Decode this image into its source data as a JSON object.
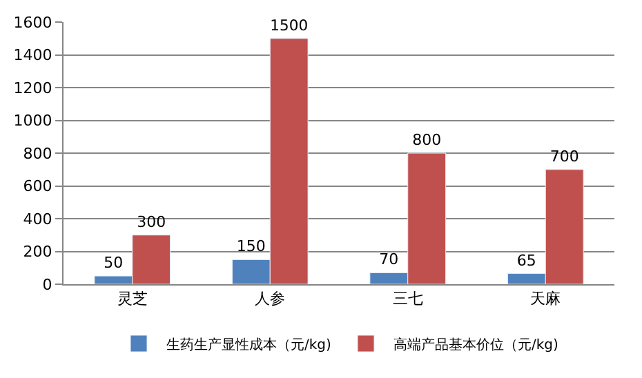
{
  "chart_data": {
    "type": "bar",
    "categories": [
      "灵芝",
      "人参",
      "三七",
      "天麻"
    ],
    "series": [
      {
        "name": "生药生产显性成本（元/kg)",
        "color": "#4f81bd",
        "values": [
          50,
          150,
          70,
          65
        ]
      },
      {
        "name": "高端产品基本价位（元/kg)",
        "color": "#c0504d",
        "values": [
          300,
          1500,
          800,
          700
        ]
      }
    ],
    "ylim": [
      0,
      1600
    ],
    "yticks": [
      0,
      200,
      400,
      600,
      800,
      1000,
      1200,
      1400,
      1600
    ],
    "grid": "y",
    "legend": "bottom",
    "data_labels": true
  }
}
